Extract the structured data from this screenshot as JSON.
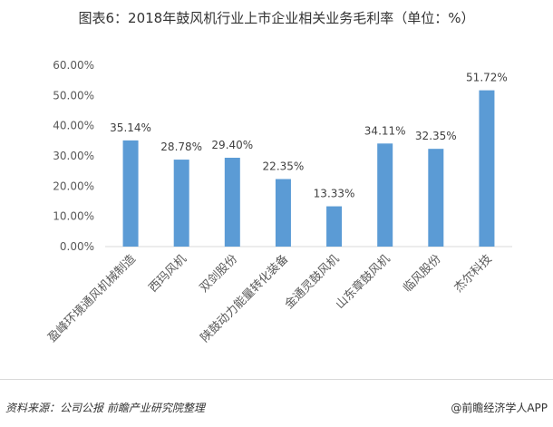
{
  "title": "图表6：2018年鼓风机行业上市企业相关业务毛利率（单位：%）",
  "source": "资料来源：公司公报 前瞻产业研究院整理",
  "credit": "@前瞻经济学人APP",
  "colors": {
    "bar": "#5b9bd5",
    "axis": "#d9d9d9",
    "text": "#595959"
  },
  "chart_data": {
    "type": "bar",
    "title": "图表6：2018年鼓风机行业上市企业相关业务毛利率（单位：%）",
    "categories": [
      "盈峰环境通风机械制造",
      "西玛风机",
      "双剑股份",
      "陕鼓动力能量转化装备",
      "金通灵鼓风机",
      "山东章鼓风机",
      "临风股份",
      "杰尔科技"
    ],
    "values": [
      35.14,
      28.78,
      29.4,
      22.35,
      13.33,
      34.11,
      32.35,
      51.72
    ],
    "data_labels": [
      "35.14%",
      "28.78%",
      "29.40%",
      "22.35%",
      "13.33%",
      "34.11%",
      "32.35%",
      "51.72%"
    ],
    "yticks": [
      "0.00%",
      "10.00%",
      "20.00%",
      "30.00%",
      "40.00%",
      "50.00%",
      "60.00%"
    ],
    "ylim": [
      0,
      60
    ],
    "grid": false,
    "legend": "none"
  }
}
